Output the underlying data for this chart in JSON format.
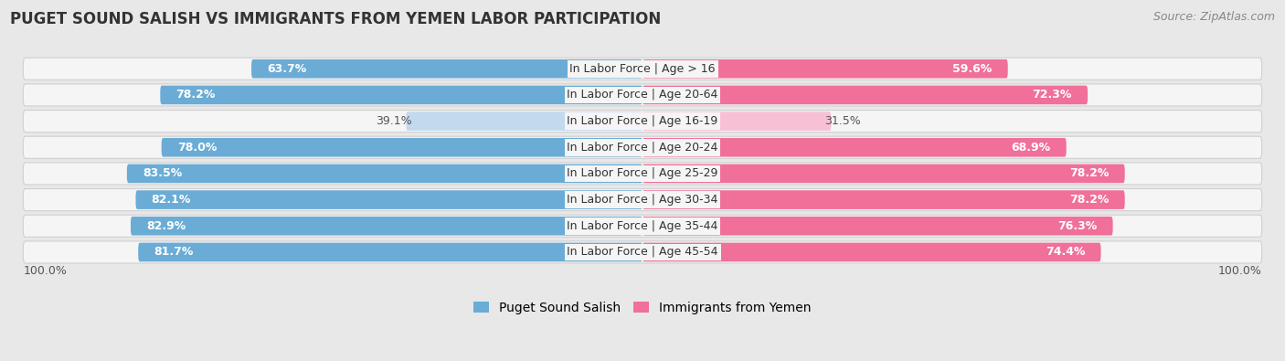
{
  "title": "PUGET SOUND SALISH VS IMMIGRANTS FROM YEMEN LABOR PARTICIPATION",
  "source": "Source: ZipAtlas.com",
  "categories": [
    "In Labor Force | Age > 16",
    "In Labor Force | Age 20-64",
    "In Labor Force | Age 16-19",
    "In Labor Force | Age 20-24",
    "In Labor Force | Age 25-29",
    "In Labor Force | Age 30-34",
    "In Labor Force | Age 35-44",
    "In Labor Force | Age 45-54"
  ],
  "left_values": [
    63.7,
    78.2,
    39.1,
    78.0,
    83.5,
    82.1,
    82.9,
    81.7
  ],
  "right_values": [
    59.6,
    72.3,
    31.5,
    68.9,
    78.2,
    78.2,
    76.3,
    74.4
  ],
  "left_color": "#6aacd5",
  "left_color_light": "#c2d9ee",
  "right_color": "#f0709a",
  "right_color_light": "#f8c0d4",
  "label_left": "Puget Sound Salish",
  "label_right": "Immigrants from Yemen",
  "bg_color": "#e8e8e8",
  "row_bg_color": "#f5f5f5",
  "row_border_color": "#d0d0d0",
  "max_val": 100.0,
  "bottom_left_label": "100.0%",
  "bottom_right_label": "100.0%",
  "title_fontsize": 12,
  "source_fontsize": 9,
  "bar_height": 0.72,
  "label_fontsize": 9,
  "cat_fontsize": 9,
  "legend_fontsize": 10
}
